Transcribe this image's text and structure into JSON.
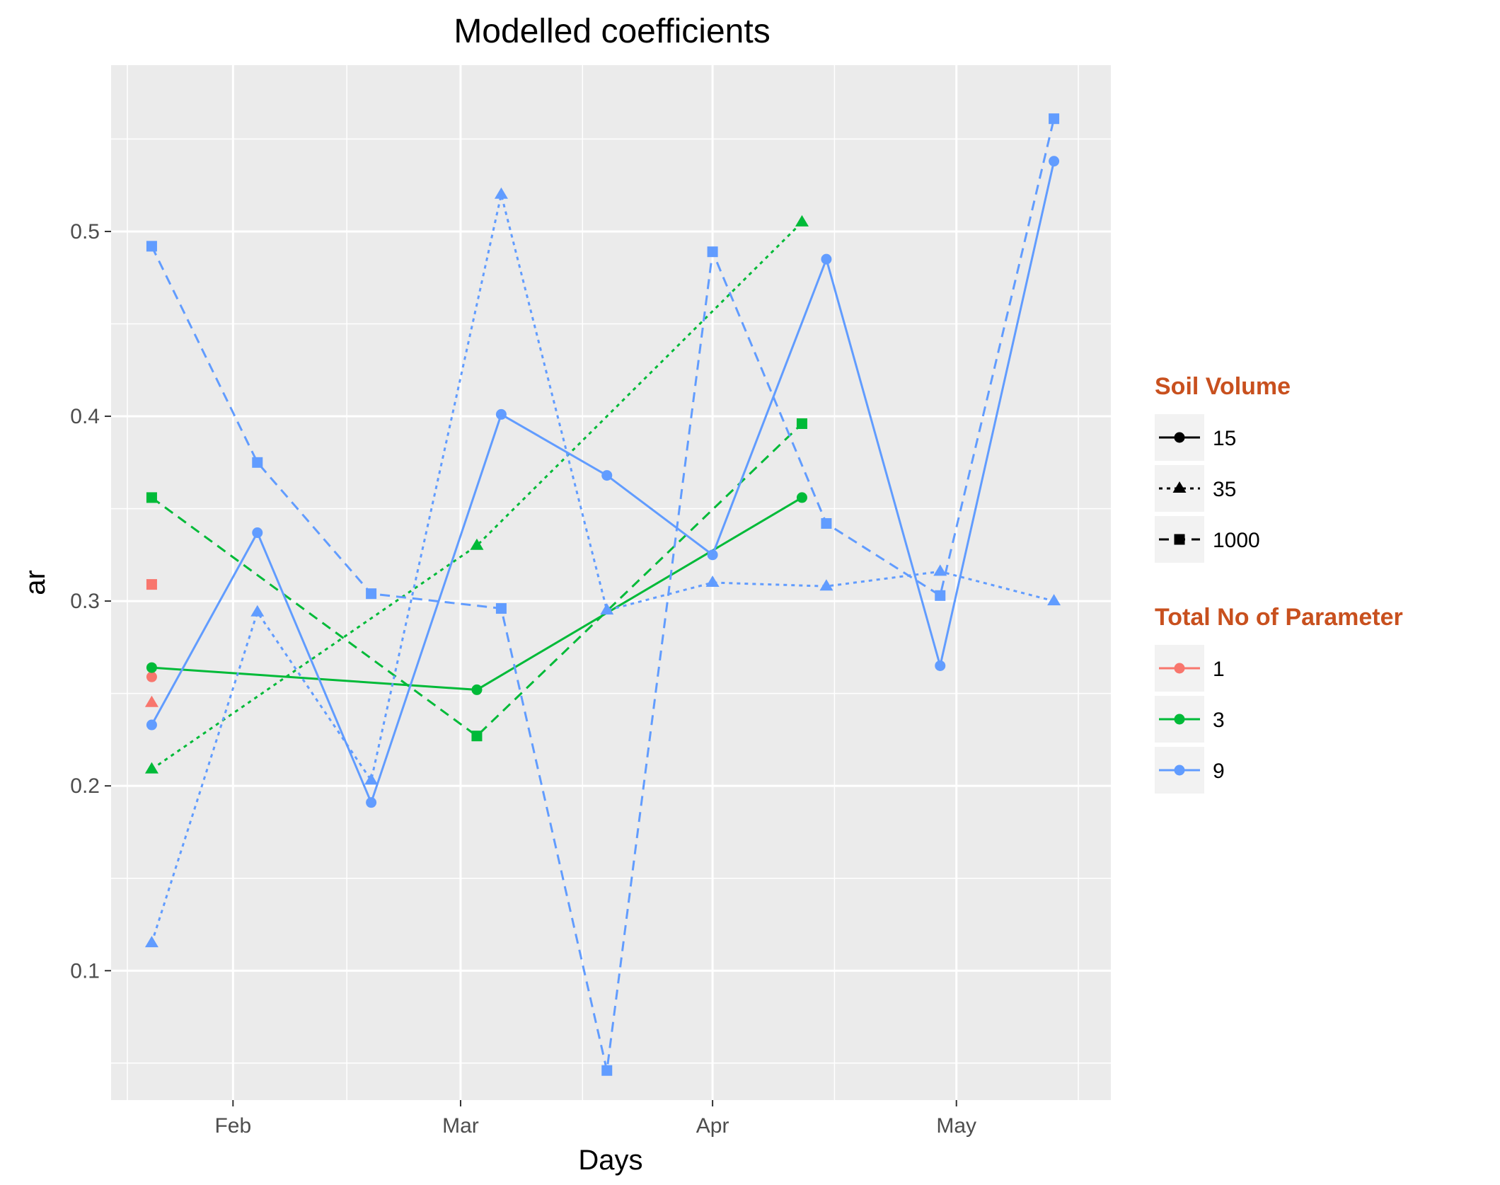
{
  "chart_data": {
    "type": "line",
    "title": "Modelled coefficients",
    "xlabel": "Days",
    "ylabel": "ar",
    "x_axis": "date",
    "xlim": [
      "2017-01-17",
      "2017-05-20"
    ],
    "ylim": [
      0.03,
      0.59
    ],
    "x_ticks": [
      {
        "date": "2017-02-01",
        "label": "Feb"
      },
      {
        "date": "2017-03-01",
        "label": "Mar"
      },
      {
        "date": "2017-04-01",
        "label": "Apr"
      },
      {
        "date": "2017-05-01",
        "label": "May"
      }
    ],
    "x_minor_dates": [
      "2017-01-19",
      "2017-02-15",
      "2017-03-16",
      "2017-04-16",
      "2017-05-16"
    ],
    "y_ticks": [
      0.1,
      0.2,
      0.3,
      0.4,
      0.5
    ],
    "y_minor": [
      0.05,
      0.15,
      0.25,
      0.35,
      0.45,
      0.55
    ],
    "grid": true,
    "legend_position": "right",
    "legends": [
      {
        "title": "Soil Volume",
        "entries": [
          {
            "label": "15",
            "shape": "circle",
            "dash": "solid"
          },
          {
            "label": "35",
            "shape": "triangle",
            "dash": "dotted"
          },
          {
            "label": "1000",
            "shape": "square",
            "dash": "dashed"
          }
        ]
      },
      {
        "title": "Total No of Parameter",
        "entries": [
          {
            "label": "1",
            "color": "#F8766D"
          },
          {
            "label": "3",
            "color": "#00BA38"
          },
          {
            "label": "9",
            "color": "#619CFF"
          }
        ]
      }
    ],
    "series": [
      {
        "params": "1",
        "soil": "15",
        "color": "#F8766D",
        "shape": "circle",
        "dash": "solid",
        "points": [
          {
            "x": "2017-01-22",
            "y": 0.259
          }
        ]
      },
      {
        "params": "1",
        "soil": "35",
        "color": "#F8766D",
        "shape": "triangle",
        "dash": "dotted",
        "points": [
          {
            "x": "2017-01-22",
            "y": 0.245
          }
        ]
      },
      {
        "params": "1",
        "soil": "1000",
        "color": "#F8766D",
        "shape": "square",
        "dash": "dashed",
        "points": [
          {
            "x": "2017-01-22",
            "y": 0.309
          }
        ]
      },
      {
        "params": "3",
        "soil": "15",
        "color": "#00BA38",
        "shape": "circle",
        "dash": "solid",
        "points": [
          {
            "x": "2017-01-22",
            "y": 0.264
          },
          {
            "x": "2017-03-03",
            "y": 0.252
          },
          {
            "x": "2017-04-12",
            "y": 0.356
          }
        ]
      },
      {
        "params": "3",
        "soil": "35",
        "color": "#00BA38",
        "shape": "triangle",
        "dash": "dotted",
        "points": [
          {
            "x": "2017-01-22",
            "y": 0.209
          },
          {
            "x": "2017-03-03",
            "y": 0.33
          },
          {
            "x": "2017-04-12",
            "y": 0.505
          }
        ]
      },
      {
        "params": "3",
        "soil": "1000",
        "color": "#00BA38",
        "shape": "square",
        "dash": "dashed",
        "points": [
          {
            "x": "2017-01-22",
            "y": 0.356
          },
          {
            "x": "2017-03-03",
            "y": 0.227
          },
          {
            "x": "2017-04-12",
            "y": 0.396
          }
        ]
      },
      {
        "params": "9",
        "soil": "15",
        "color": "#619CFF",
        "shape": "circle",
        "dash": "solid",
        "points": [
          {
            "x": "2017-01-22",
            "y": 0.233
          },
          {
            "x": "2017-02-04",
            "y": 0.337
          },
          {
            "x": "2017-02-18",
            "y": 0.191
          },
          {
            "x": "2017-03-06",
            "y": 0.401
          },
          {
            "x": "2017-03-19",
            "y": 0.368
          },
          {
            "x": "2017-04-01",
            "y": 0.325
          },
          {
            "x": "2017-04-15",
            "y": 0.485
          },
          {
            "x": "2017-04-29",
            "y": 0.265
          },
          {
            "x": "2017-05-13",
            "y": 0.538
          }
        ]
      },
      {
        "params": "9",
        "soil": "35",
        "color": "#619CFF",
        "shape": "triangle",
        "dash": "dotted",
        "points": [
          {
            "x": "2017-01-22",
            "y": 0.115
          },
          {
            "x": "2017-02-04",
            "y": 0.294
          },
          {
            "x": "2017-02-18",
            "y": 0.203
          },
          {
            "x": "2017-03-06",
            "y": 0.52
          },
          {
            "x": "2017-03-19",
            "y": 0.295
          },
          {
            "x": "2017-04-01",
            "y": 0.31
          },
          {
            "x": "2017-04-15",
            "y": 0.308
          },
          {
            "x": "2017-04-29",
            "y": 0.316
          },
          {
            "x": "2017-05-13",
            "y": 0.3
          }
        ]
      },
      {
        "params": "9",
        "soil": "1000",
        "color": "#619CFF",
        "shape": "square",
        "dash": "dashed",
        "points": [
          {
            "x": "2017-01-22",
            "y": 0.492
          },
          {
            "x": "2017-02-04",
            "y": 0.375
          },
          {
            "x": "2017-02-18",
            "y": 0.304
          },
          {
            "x": "2017-03-06",
            "y": 0.296
          },
          {
            "x": "2017-03-19",
            "y": 0.046
          },
          {
            "x": "2017-04-01",
            "y": 0.489
          },
          {
            "x": "2017-04-15",
            "y": 0.342
          },
          {
            "x": "2017-04-29",
            "y": 0.303
          },
          {
            "x": "2017-05-13",
            "y": 0.561
          }
        ]
      }
    ]
  }
}
